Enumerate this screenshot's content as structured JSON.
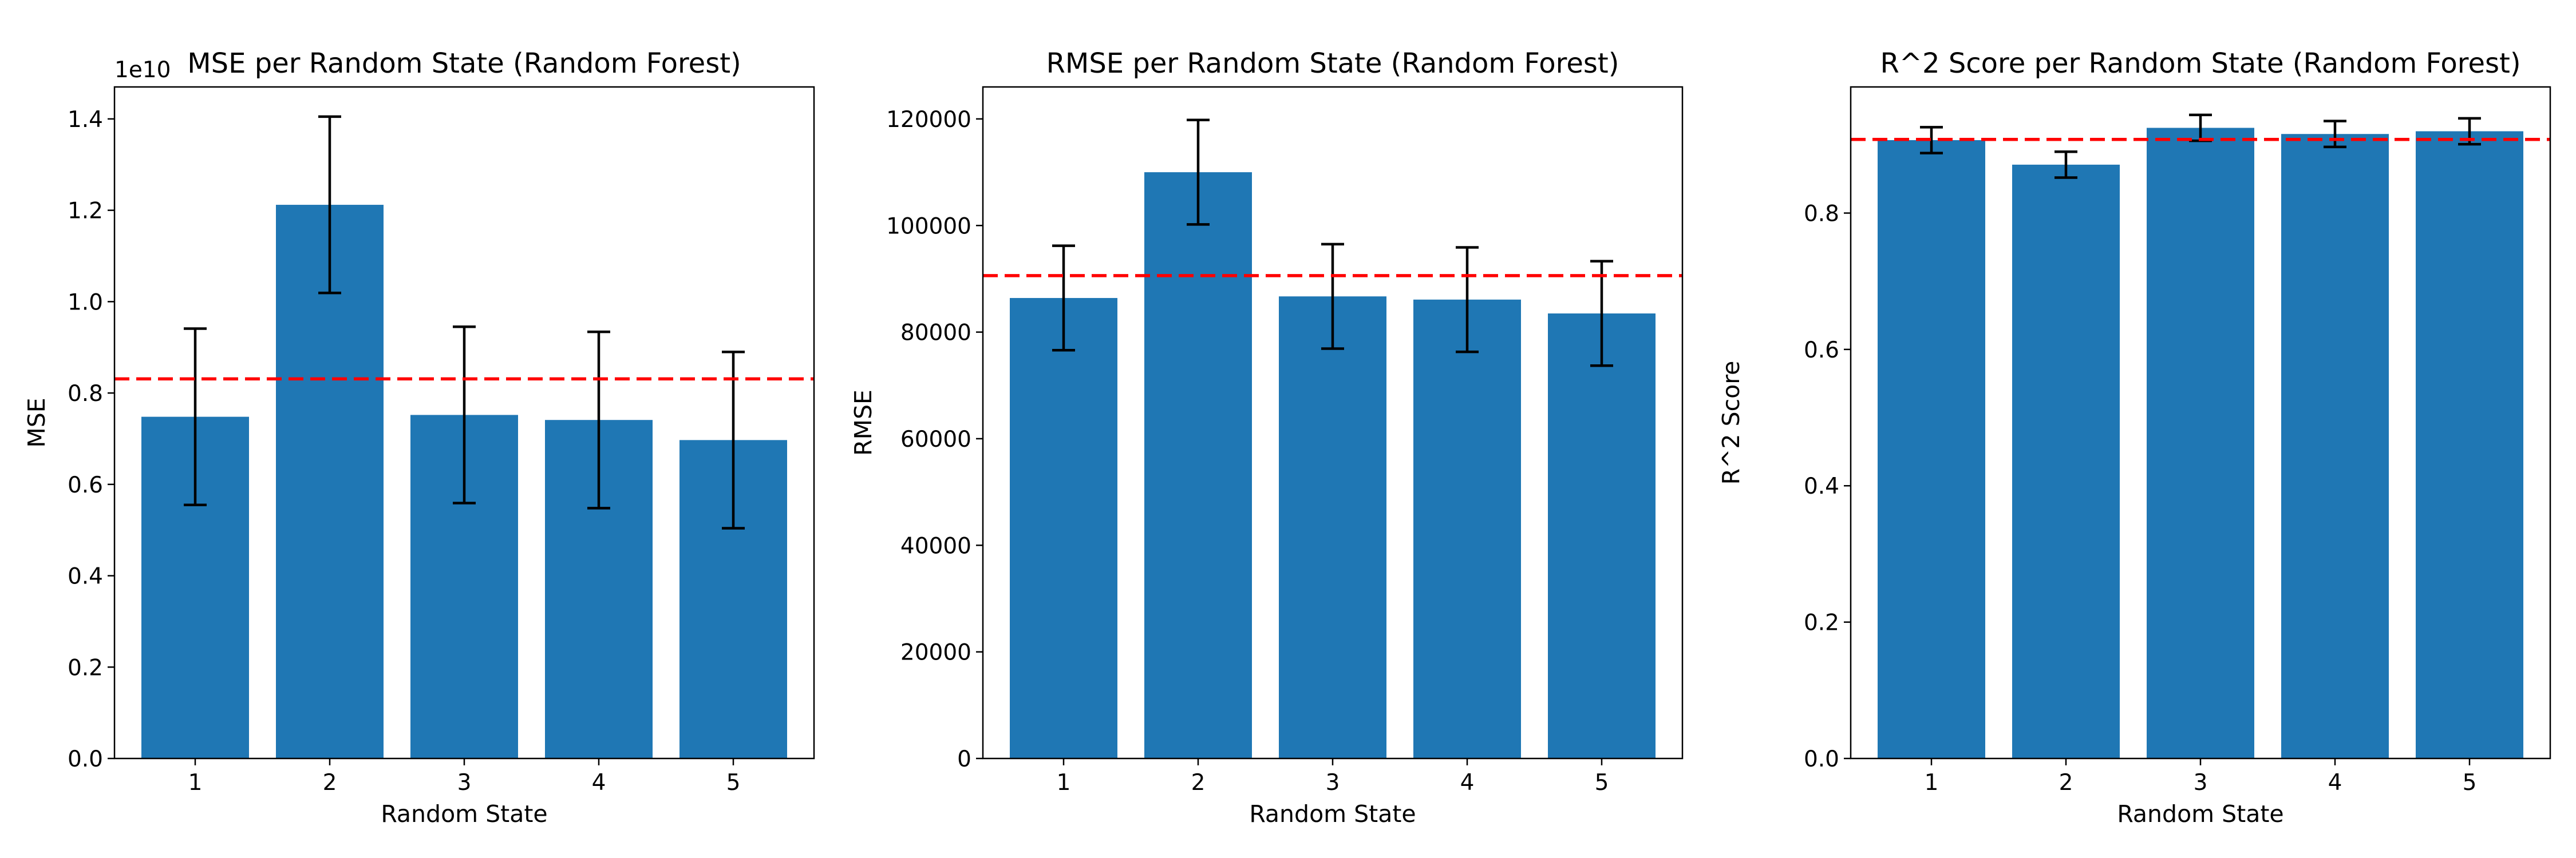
{
  "chart_data": [
    {
      "type": "bar",
      "title": "MSE per Random State (Random Forest)",
      "xlabel": "Random State",
      "ylabel": "MSE",
      "offset_text": "1e10",
      "categories": [
        "1",
        "2",
        "3",
        "4",
        "5"
      ],
      "values": [
        0.748,
        1.212,
        0.752,
        0.741,
        0.697
      ],
      "errors": [
        0.193,
        0.193,
        0.193,
        0.193,
        0.193
      ],
      "mean_line": 0.831,
      "ylim": [
        0,
        1.47
      ],
      "yticks": [
        0,
        0.2,
        0.4,
        0.6,
        0.8,
        1.0,
        1.2,
        1.4
      ],
      "ytick_labels": [
        "0.0",
        "0.2",
        "0.4",
        "0.6",
        "0.8",
        "1.0",
        "1.2",
        "1.4"
      ],
      "bar_color": "#1f77b4",
      "mean_line_color": "#ff0000",
      "error_color": "#000000"
    },
    {
      "type": "bar",
      "title": "RMSE per Random State (Random Forest)",
      "xlabel": "Random State",
      "ylabel": "RMSE",
      "categories": [
        "1",
        "2",
        "3",
        "4",
        "5"
      ],
      "values": [
        86400,
        110000,
        86700,
        86100,
        83500
      ],
      "errors": [
        9800,
        9800,
        9800,
        9800,
        9800
      ],
      "mean_line": 90600,
      "ylim": [
        0,
        126000
      ],
      "yticks": [
        0,
        20000,
        40000,
        60000,
        80000,
        100000,
        120000
      ],
      "ytick_labels": [
        "0",
        "20000",
        "40000",
        "60000",
        "80000",
        "100000",
        "120000"
      ],
      "bar_color": "#1f77b4",
      "mean_line_color": "#ff0000",
      "error_color": "#000000"
    },
    {
      "type": "bar",
      "title": "R^2 Score per Random State (Random Forest)",
      "xlabel": "Random State",
      "ylabel": "R^2 Score",
      "categories": [
        "1",
        "2",
        "3",
        "4",
        "5"
      ],
      "values": [
        0.907,
        0.871,
        0.925,
        0.916,
        0.92
      ],
      "errors": [
        0.019,
        0.019,
        0.019,
        0.019,
        0.019
      ],
      "mean_line": 0.908,
      "ylim": [
        0,
        0.985
      ],
      "yticks": [
        0,
        0.2,
        0.4,
        0.6,
        0.8
      ],
      "ytick_labels": [
        "0.0",
        "0.2",
        "0.4",
        "0.6",
        "0.8"
      ],
      "bar_color": "#1f77b4",
      "mean_line_color": "#ff0000",
      "error_color": "#000000"
    }
  ]
}
